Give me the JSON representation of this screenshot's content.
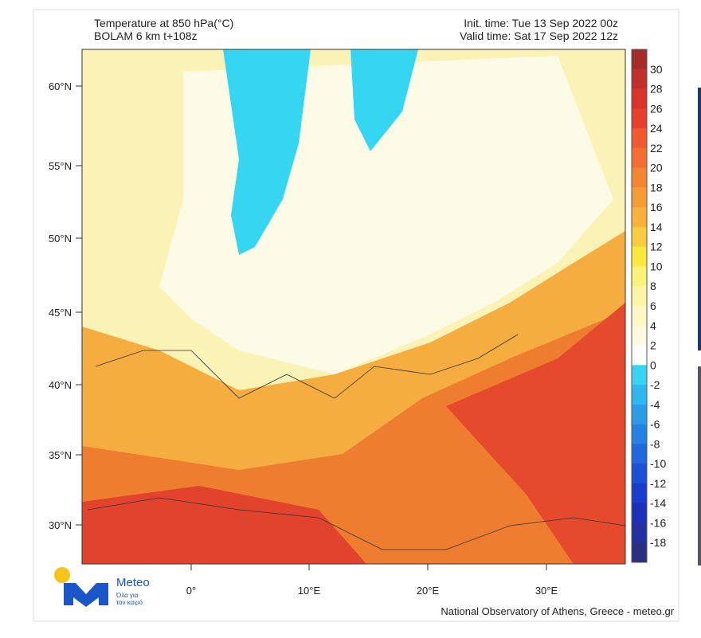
{
  "header": {
    "title": "Temperature at 850 hPa(°C)",
    "model": "BOLAM 6 km t+108z",
    "init_time": "Init. time: Tue 13 Sep 2022 00z",
    "valid_time": "Valid time: Sat 17 Sep 2022 12z"
  },
  "map": {
    "lat_labels": [
      "60°N",
      "55°N",
      "50°N",
      "45°N",
      "40°N",
      "35°N",
      "30°N"
    ],
    "lon_labels": [
      "0°",
      "10°E",
      "20°E",
      "30°E"
    ]
  },
  "colorbar": {
    "labels": [
      30,
      28,
      26,
      24,
      22,
      20,
      18,
      16,
      14,
      12,
      10,
      8,
      6,
      4,
      2,
      0,
      -2,
      -4,
      -6,
      -8,
      -10,
      -12,
      -14,
      -16,
      -18
    ]
  },
  "logo": {
    "name": "Meteo",
    "tagline_1": "Όλα για",
    "tagline_2": "τον καιρό"
  },
  "footer": "National Observatory of Athens, Greece - meteo.gr"
}
